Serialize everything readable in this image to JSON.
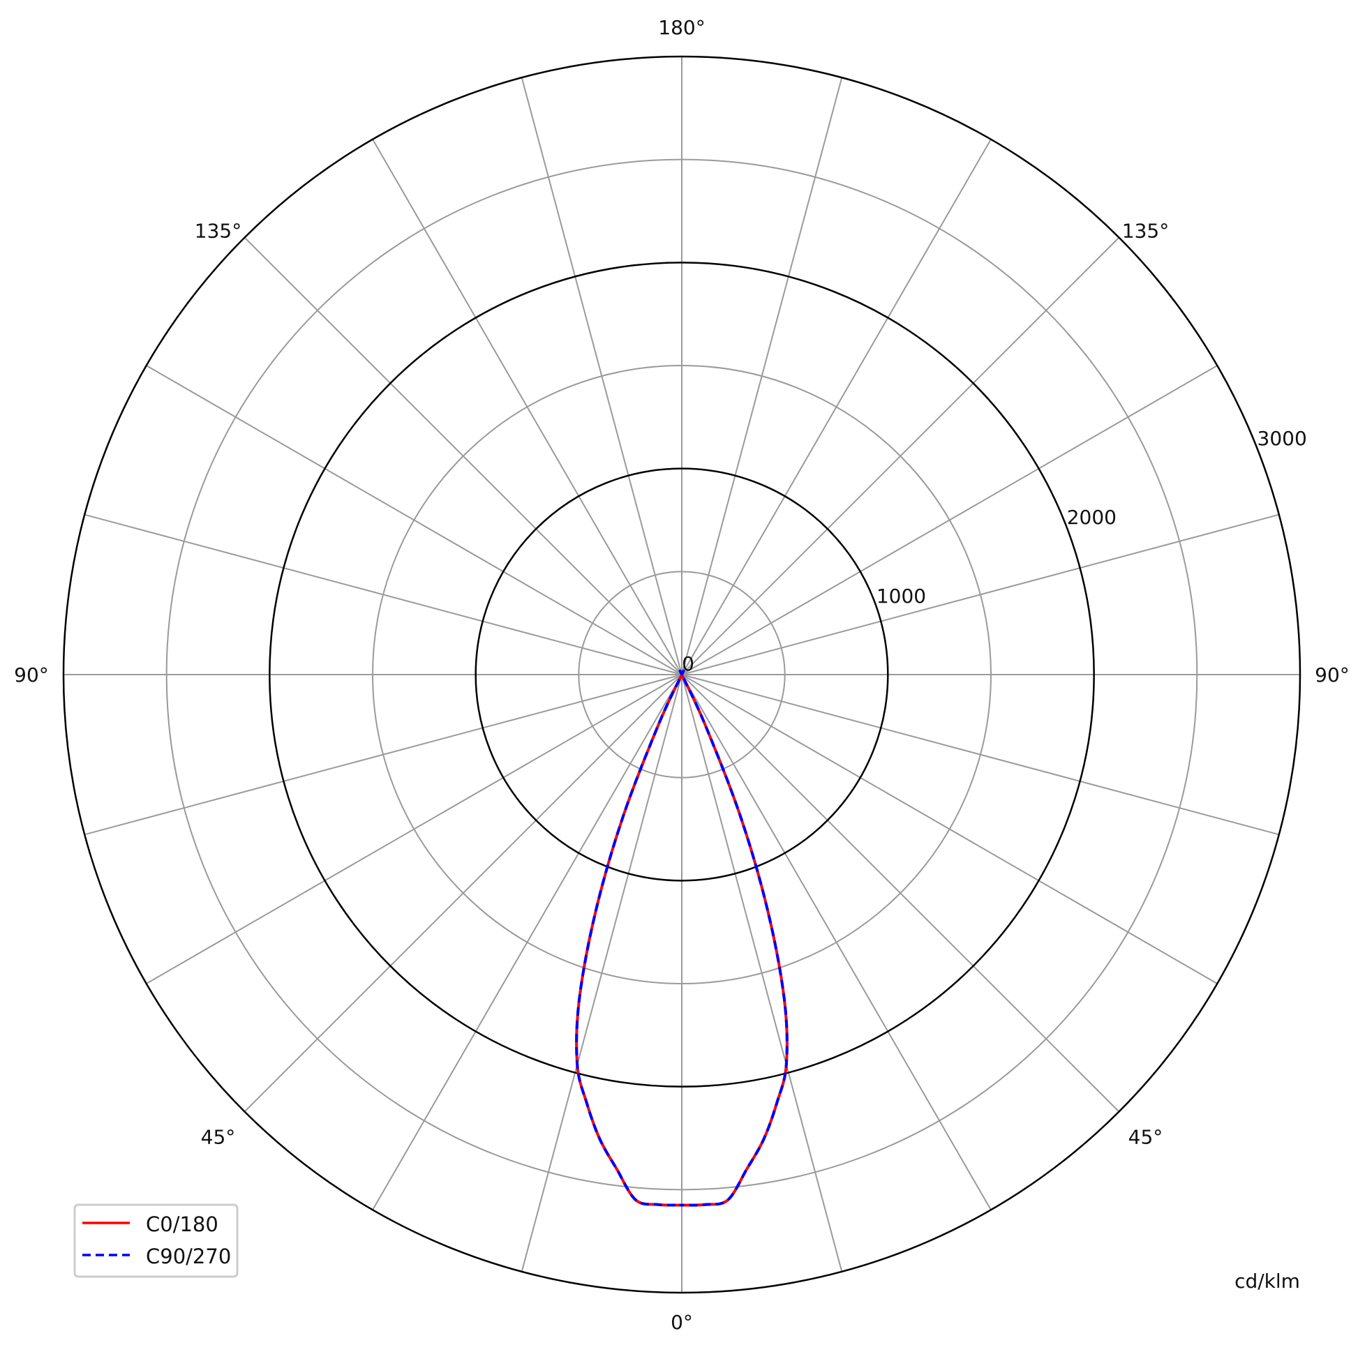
{
  "chart_data": {
    "type": "polar-line",
    "unit_label": "cd/klm",
    "radial_range": [
      0,
      3000
    ],
    "radial_ticks": [
      0,
      1000,
      2000,
      3000
    ],
    "radial_minor_rings": [
      500,
      1500,
      2500
    ],
    "angle_ticks_step_deg": 15,
    "angle_labels": [
      {
        "text": "180°",
        "angle": 180,
        "side": "center"
      },
      {
        "text": "135°",
        "angle": 135,
        "side": "left"
      },
      {
        "text": "135°",
        "angle": 135,
        "side": "right"
      },
      {
        "text": "90°",
        "angle": 90,
        "side": "left"
      },
      {
        "text": "90°",
        "angle": 90,
        "side": "right"
      },
      {
        "text": "45°",
        "angle": 45,
        "side": "left"
      },
      {
        "text": "45°",
        "angle": 45,
        "side": "right"
      },
      {
        "text": "0°",
        "angle": 0,
        "side": "center"
      }
    ],
    "grid": true,
    "legend_position": "bottom-left",
    "series": [
      {
        "name": "C0/180",
        "color": "#ff0000",
        "style": "solid",
        "angles": [
          0,
          2.5,
          5,
          7.5,
          10,
          12.5,
          15,
          17.5,
          20,
          22.5,
          25,
          27.5,
          30,
          45,
          60,
          75,
          90,
          180
        ],
        "values": [
          2575,
          2575,
          2560,
          2420,
          2290,
          2130,
          1960,
          1655,
          1220,
          740,
          260,
          0,
          0,
          0,
          0,
          0,
          0,
          0
        ]
      },
      {
        "name": "C90/270",
        "color": "#0000ff",
        "style": "dashed",
        "angles": [
          0,
          2.5,
          5,
          7.5,
          10,
          12.5,
          15,
          17.5,
          20,
          22.5,
          25,
          27.5,
          30,
          45,
          60,
          75,
          90,
          180
        ],
        "values": [
          2575,
          2575,
          2560,
          2420,
          2290,
          2130,
          1960,
          1655,
          1220,
          740,
          260,
          0,
          0,
          0,
          0,
          0,
          0,
          0
        ]
      }
    ]
  }
}
